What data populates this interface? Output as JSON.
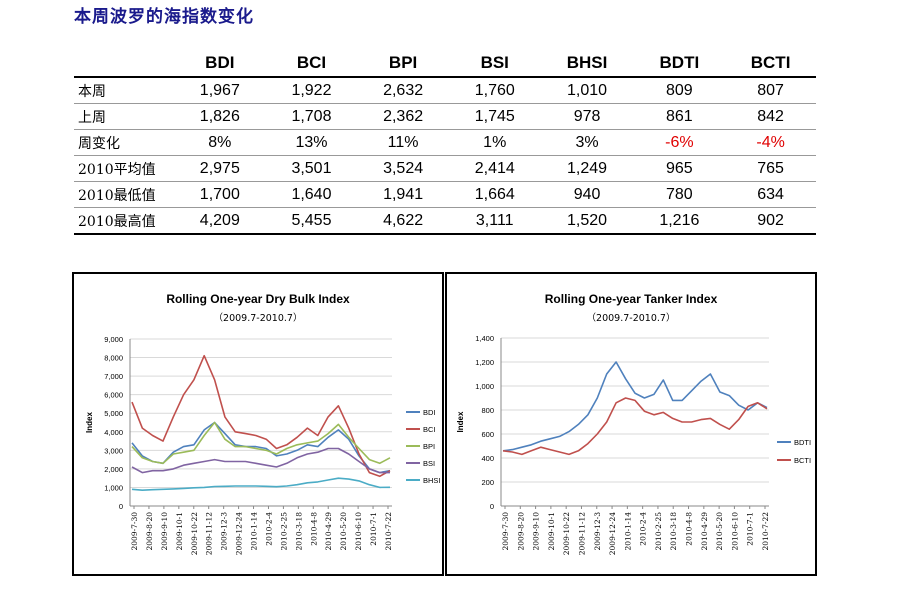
{
  "heading": "本周波罗的海指数变化",
  "table": {
    "columns": [
      "BDI",
      "BCI",
      "BPI",
      "BSI",
      "BHSI",
      "BDTI",
      "BCTI"
    ],
    "rows": [
      {
        "label": "本周",
        "values": [
          "1,967",
          "1,922",
          "2,632",
          "1,760",
          "1,010",
          "809",
          "807"
        ]
      },
      {
        "label": "上周",
        "values": [
          "1,826",
          "1,708",
          "2,362",
          "1,745",
          "978",
          "861",
          "842"
        ]
      },
      {
        "label": "周变化",
        "values": [
          "8%",
          "13%",
          "11%",
          "1%",
          "3%",
          "-6%",
          "-4%"
        ]
      },
      {
        "label": "2010平均值",
        "values": [
          "2,975",
          "3,501",
          "3,524",
          "2,414",
          "1,249",
          "965",
          "765"
        ]
      },
      {
        "label": "2010最低值",
        "values": [
          "1,700",
          "1,640",
          "1,941",
          "1,664",
          "940",
          "780",
          "634"
        ]
      },
      {
        "label": "2010最高值",
        "values": [
          "4,209",
          "5,455",
          "4,622",
          "3,111",
          "1,520",
          "1,216",
          "902"
        ]
      }
    ]
  },
  "chart_data": [
    {
      "type": "line",
      "title": "Rolling One-year Dry Bulk Index",
      "subtitle": "（2009.7-2010.7）",
      "ylabel": "Index",
      "ylim": [
        0,
        9000
      ],
      "yticks": [
        "0",
        "1,000",
        "2,000",
        "3,000",
        "4,000",
        "5,000",
        "6,000",
        "7,000",
        "8,000",
        "9,000"
      ],
      "xticks": [
        "2009-7-30",
        "2009-8-20",
        "2009-9-10",
        "2009-10-1",
        "2009-10-22",
        "2009-11-12",
        "2009-12-3",
        "2009-12-24",
        "2010-1-14",
        "2010-2-4",
        "2010-2-25",
        "2010-3-18",
        "2010-4-8",
        "2010-4-29",
        "2010-5-20",
        "2010-6-10",
        "2010-7-1",
        "2010-7-22"
      ],
      "legend_position": "right",
      "series": [
        {
          "name": "BDI",
          "color": "#4f81bd",
          "values": [
            3400,
            2700,
            2400,
            2300,
            2900,
            3200,
            3300,
            4100,
            4500,
            3900,
            3300,
            3200,
            3200,
            3100,
            2700,
            2800,
            3000,
            3300,
            3200,
            3700,
            4100,
            3600,
            2700,
            2000,
            1800,
            1900
          ]
        },
        {
          "name": "BCI",
          "color": "#c0504d",
          "values": [
            5600,
            4200,
            3800,
            3500,
            4800,
            6000,
            6800,
            8100,
            6800,
            4800,
            4000,
            3900,
            3800,
            3600,
            3100,
            3300,
            3700,
            4200,
            3800,
            4800,
            5400,
            4200,
            2800,
            1800,
            1600,
            1900
          ]
        },
        {
          "name": "BPI",
          "color": "#9bbb59",
          "values": [
            3200,
            2600,
            2400,
            2300,
            2800,
            2900,
            3000,
            3800,
            4500,
            3600,
            3200,
            3200,
            3100,
            3000,
            2800,
            3100,
            3300,
            3400,
            3500,
            3900,
            4400,
            3700,
            3100,
            2500,
            2300,
            2600
          ]
        },
        {
          "name": "BSI",
          "color": "#8064a2",
          "values": [
            2100,
            1800,
            1900,
            1900,
            2000,
            2200,
            2300,
            2400,
            2500,
            2400,
            2400,
            2400,
            2300,
            2200,
            2100,
            2300,
            2600,
            2800,
            2900,
            3100,
            3100,
            2800,
            2400,
            2000,
            1800,
            1800
          ]
        },
        {
          "name": "BHSI",
          "color": "#4bacc6",
          "values": [
            900,
            850,
            880,
            900,
            920,
            950,
            980,
            1000,
            1050,
            1060,
            1080,
            1080,
            1080,
            1060,
            1040,
            1080,
            1150,
            1250,
            1300,
            1400,
            1500,
            1450,
            1350,
            1150,
            1000,
            1010
          ]
        }
      ]
    },
    {
      "type": "line",
      "title": "Rolling One-year Tanker Index",
      "subtitle": "（2009.7-2010.7）",
      "ylabel": "Index",
      "ylim": [
        0,
        1400
      ],
      "yticks": [
        "0",
        "200",
        "400",
        "600",
        "800",
        "1,000",
        "1,200",
        "1,400"
      ],
      "xticks": [
        "2009-7-30",
        "2009-8-20",
        "2009-9-10",
        "2009-10-1",
        "2009-10-22",
        "2009-11-12",
        "2009-12-3",
        "2009-12-24",
        "2010-1-14",
        "2010-2-4",
        "2010-2-25",
        "2010-3-18",
        "2010-4-8",
        "2010-4-29",
        "2010-5-20",
        "2010-6-10",
        "2010-7-1",
        "2010-7-22"
      ],
      "legend_position": "right",
      "series": [
        {
          "name": "BDTI",
          "color": "#4f81bd",
          "values": [
            460,
            470,
            490,
            510,
            540,
            560,
            580,
            620,
            680,
            760,
            900,
            1100,
            1200,
            1060,
            940,
            900,
            930,
            1050,
            880,
            880,
            960,
            1040,
            1100,
            950,
            920,
            840,
            800,
            860,
            820
          ]
        },
        {
          "name": "BCTI",
          "color": "#c0504d",
          "values": [
            460,
            450,
            430,
            460,
            490,
            470,
            450,
            430,
            460,
            520,
            600,
            700,
            860,
            900,
            880,
            790,
            760,
            780,
            730,
            700,
            700,
            720,
            730,
            680,
            640,
            720,
            830,
            860,
            810
          ]
        }
      ]
    }
  ]
}
